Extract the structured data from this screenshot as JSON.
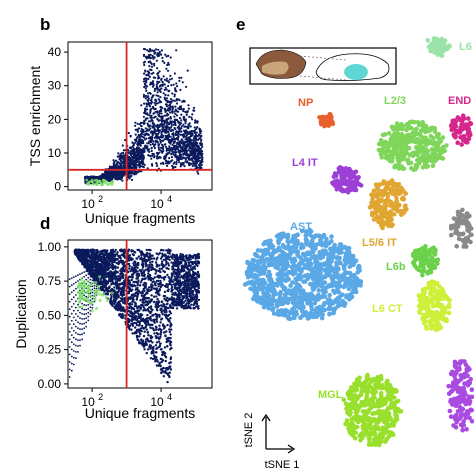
{
  "panels": {
    "b": "b",
    "d": "d",
    "e": "e"
  },
  "chart_data": [
    {
      "panel": "b",
      "type": "scatter",
      "xlabel": "Unique fragments",
      "ylabel": "TSS enrichment",
      "x_scale": "log",
      "x_ticks": [
        100,
        10000
      ],
      "x_tick_labels": [
        "10",
        "10"
      ],
      "x_tick_exponents": [
        "2",
        "4"
      ],
      "y_ticks": [
        0,
        10,
        20,
        30,
        40
      ],
      "ylim": [
        -1,
        43
      ],
      "xlim": [
        20,
        300000
      ],
      "threshold_x": 1000,
      "threshold_y": 5,
      "threshold_color": "#d62728",
      "point_color": "#0b1a5c",
      "dense_color": "#7ee06a"
    },
    {
      "panel": "d",
      "type": "scatter",
      "xlabel": "Unique fragments",
      "ylabel": "Duplication",
      "x_scale": "log",
      "x_ticks": [
        100,
        10000
      ],
      "x_tick_labels": [
        "10",
        "10"
      ],
      "x_tick_exponents": [
        "2",
        "4"
      ],
      "y_ticks": [
        0.0,
        0.25,
        0.5,
        0.75,
        1.0
      ],
      "y_tick_labels": [
        "0.00",
        "0.25",
        "0.50",
        "0.75",
        "1.00"
      ],
      "ylim": [
        -0.03,
        1.05
      ],
      "xlim": [
        20,
        300000
      ],
      "threshold_x": 1000,
      "threshold_color": "#d62728",
      "point_color": "#0b1a5c",
      "dense_color": "#7ee06a"
    },
    {
      "panel": "e",
      "type": "scatter",
      "xlabel": "tSNE 1",
      "ylabel": "tSNE 2",
      "clusters": [
        {
          "name": "L6",
          "color": "#9be3a8"
        },
        {
          "name": "NP",
          "color": "#e8602c"
        },
        {
          "name": "L2/3",
          "color": "#7fd65a"
        },
        {
          "name": "END",
          "color": "#d6278c"
        },
        {
          "name": "L4 IT",
          "color": "#9b3fd6"
        },
        {
          "name": "AST",
          "color": "#5aa8e6"
        },
        {
          "name": "L5/6 IT",
          "color": "#e0a631"
        },
        {
          "name": "L6b",
          "color": "#6cd14a"
        },
        {
          "name": "L6 CT",
          "color": "#cff03a"
        },
        {
          "name": "MGL",
          "color": "#98e02c"
        },
        {
          "name": "",
          "color": "#8a8a8a"
        },
        {
          "name": "",
          "color": "#a94ae0"
        }
      ]
    }
  ]
}
